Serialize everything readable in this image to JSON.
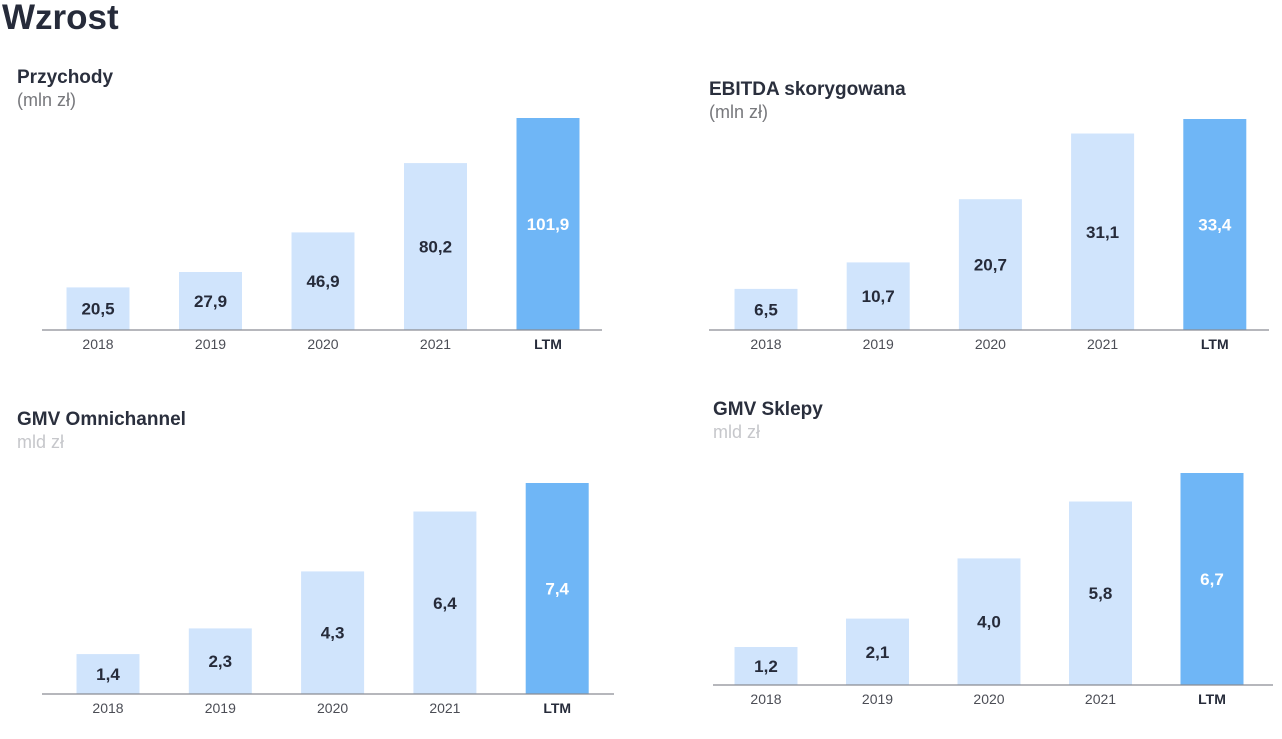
{
  "page": {
    "title": "Wzrost"
  },
  "colors": {
    "bar": "#d0e4fc",
    "bar_highlight": "#6fb6f6",
    "label_dark": "#262b3a",
    "label_light": "#ffffff",
    "axis": "#8a8c93"
  },
  "chart_data": [
    {
      "type": "bar",
      "title": "Przychody",
      "subtitle": "(mln zł)",
      "categories": [
        "2018",
        "2019",
        "2020",
        "2021",
        "LTM"
      ],
      "values": [
        20.5,
        27.9,
        46.9,
        80.2,
        101.9
      ],
      "data_labels": [
        "20,5",
        "27,9",
        "46,9",
        "80,2",
        "101,9"
      ],
      "highlight": "LTM",
      "grid": false
    },
    {
      "type": "bar",
      "title": "EBITDA skorygowana",
      "subtitle": "(mln zł)",
      "categories": [
        "2018",
        "2019",
        "2020",
        "2021",
        "LTM"
      ],
      "values": [
        6.5,
        10.7,
        20.7,
        31.1,
        33.4
      ],
      "data_labels": [
        "6,5",
        "10,7",
        "20,7",
        "31,1",
        "33,4"
      ],
      "highlight": "LTM",
      "grid": false
    },
    {
      "type": "bar",
      "title": "GMV Omnichannel",
      "subtitle": "mld zł",
      "categories": [
        "2018",
        "2019",
        "2020",
        "2021",
        "LTM"
      ],
      "values": [
        1.4,
        2.3,
        4.3,
        6.4,
        7.4
      ],
      "data_labels": [
        "1,4",
        "2,3",
        "4,3",
        "6,4",
        "7,4"
      ],
      "highlight": "LTM",
      "grid": false
    },
    {
      "type": "bar",
      "title": "GMV Sklepy",
      "subtitle": "mld zł",
      "categories": [
        "2018",
        "2019",
        "2020",
        "2021",
        "LTM"
      ],
      "values": [
        1.2,
        2.1,
        4.0,
        5.8,
        6.7
      ],
      "data_labels": [
        "1,2",
        "2,1",
        "4,0",
        "5,8",
        "6,7"
      ],
      "highlight": "LTM",
      "grid": false
    }
  ]
}
